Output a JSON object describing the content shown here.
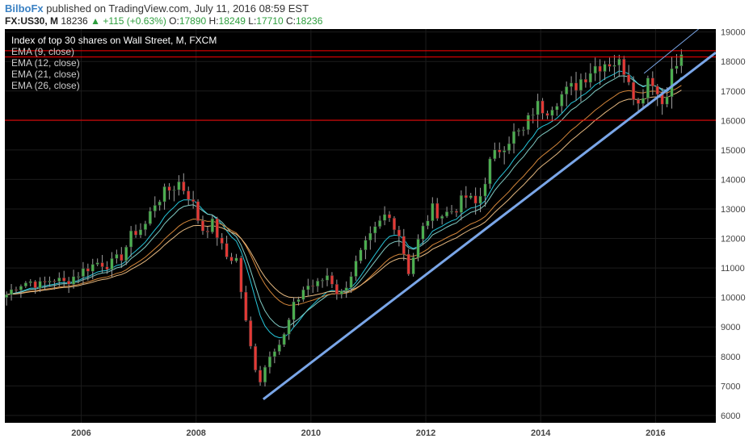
{
  "header": {
    "author": "BilboFx",
    "published_text": "published on TradingView.com, July 11, 2016 08:59 EST",
    "symbol": "FX:US30, M",
    "last": "18236",
    "change": "+115 (+0.63%)",
    "open_label": "O:",
    "open": "17890",
    "high_label": "H:",
    "high": "18249",
    "low_label": "L:",
    "low": "17710",
    "close_label": "C:",
    "close": "18236"
  },
  "legend": {
    "title": "Index of top 30 shares on Wall Street, M, FXCM",
    "items": [
      "EMA (9, close)",
      "EMA (12, close)",
      "EMA (21, close)",
      "EMA (26, close)"
    ]
  },
  "colors": {
    "background": "#000000",
    "up": "#4caf50",
    "down": "#e53935",
    "trendline": "#7aa6e8",
    "hline": "#ff0000",
    "ema9": "#26c6da",
    "ema12": "#80cbc4",
    "ema21": "#d4863a",
    "ema26": "#e6b980"
  },
  "chart_data": {
    "type": "candlestick",
    "xaxis_ticks": [
      "2006",
      "2008",
      "2010",
      "2012",
      "2014",
      "2016"
    ],
    "yaxis_ticks": [
      6000,
      7000,
      8000,
      9000,
      10000,
      11000,
      12000,
      13000,
      14000,
      15000,
      16000,
      17000,
      18000,
      19000
    ],
    "ylim": [
      5750,
      19100
    ],
    "xlim": [
      2004.67,
      2017.05
    ],
    "horizontal_lines": [
      {
        "label": "18365",
        "value": 18365
      },
      {
        "label": "18153",
        "value": 18153
      },
      {
        "label": "16007",
        "value": 16007
      }
    ],
    "trendline": {
      "start": [
        2009.17,
        6550
      ],
      "end": [
        2017.05,
        18300
      ]
    },
    "series_close": [
      [
        2004.7,
        10100
      ],
      [
        2004.9,
        10450
      ],
      [
        2005.1,
        10550
      ],
      [
        2005.3,
        10400
      ],
      [
        2005.5,
        10650
      ],
      [
        2005.7,
        10500
      ],
      [
        2005.9,
        10750
      ],
      [
        2006.1,
        11000
      ],
      [
        2006.3,
        11200
      ],
      [
        2006.5,
        11100
      ],
      [
        2006.7,
        11400
      ],
      [
        2006.9,
        12200
      ],
      [
        2007.1,
        12400
      ],
      [
        2007.3,
        13300
      ],
      [
        2007.5,
        13600
      ],
      [
        2007.7,
        13900
      ],
      [
        2007.9,
        13400
      ],
      [
        2008.1,
        12300
      ],
      [
        2008.3,
        12500
      ],
      [
        2008.5,
        11400
      ],
      [
        2008.7,
        11300
      ],
      [
        2008.9,
        8700
      ],
      [
        2009.1,
        7100
      ],
      [
        2009.3,
        8200
      ],
      [
        2009.5,
        8500
      ],
      [
        2009.7,
        9700
      ],
      [
        2009.9,
        10400
      ],
      [
        2010.1,
        10400
      ],
      [
        2010.3,
        10800
      ],
      [
        2010.5,
        10000
      ],
      [
        2010.7,
        10800
      ],
      [
        2010.9,
        11600
      ],
      [
        2011.1,
        12200
      ],
      [
        2011.3,
        12800
      ],
      [
        2011.5,
        12400
      ],
      [
        2011.7,
        10900
      ],
      [
        2011.9,
        12100
      ],
      [
        2012.1,
        13000
      ],
      [
        2012.3,
        12800
      ],
      [
        2012.5,
        13000
      ],
      [
        2012.7,
        13400
      ],
      [
        2012.9,
        13100
      ],
      [
        2013.1,
        14500
      ],
      [
        2013.3,
        15100
      ],
      [
        2013.5,
        15500
      ],
      [
        2013.7,
        15600
      ],
      [
        2013.9,
        16500
      ],
      [
        2014.1,
        16400
      ],
      [
        2014.3,
        16800
      ],
      [
        2014.5,
        17000
      ],
      [
        2014.7,
        17400
      ],
      [
        2014.9,
        17800
      ],
      [
        2015.1,
        18000
      ],
      [
        2015.3,
        18000
      ],
      [
        2015.5,
        17700
      ],
      [
        2015.7,
        16500
      ],
      [
        2015.9,
        17700
      ],
      [
        2016.1,
        16500
      ],
      [
        2016.3,
        17700
      ],
      [
        2016.5,
        18236
      ]
    ]
  }
}
